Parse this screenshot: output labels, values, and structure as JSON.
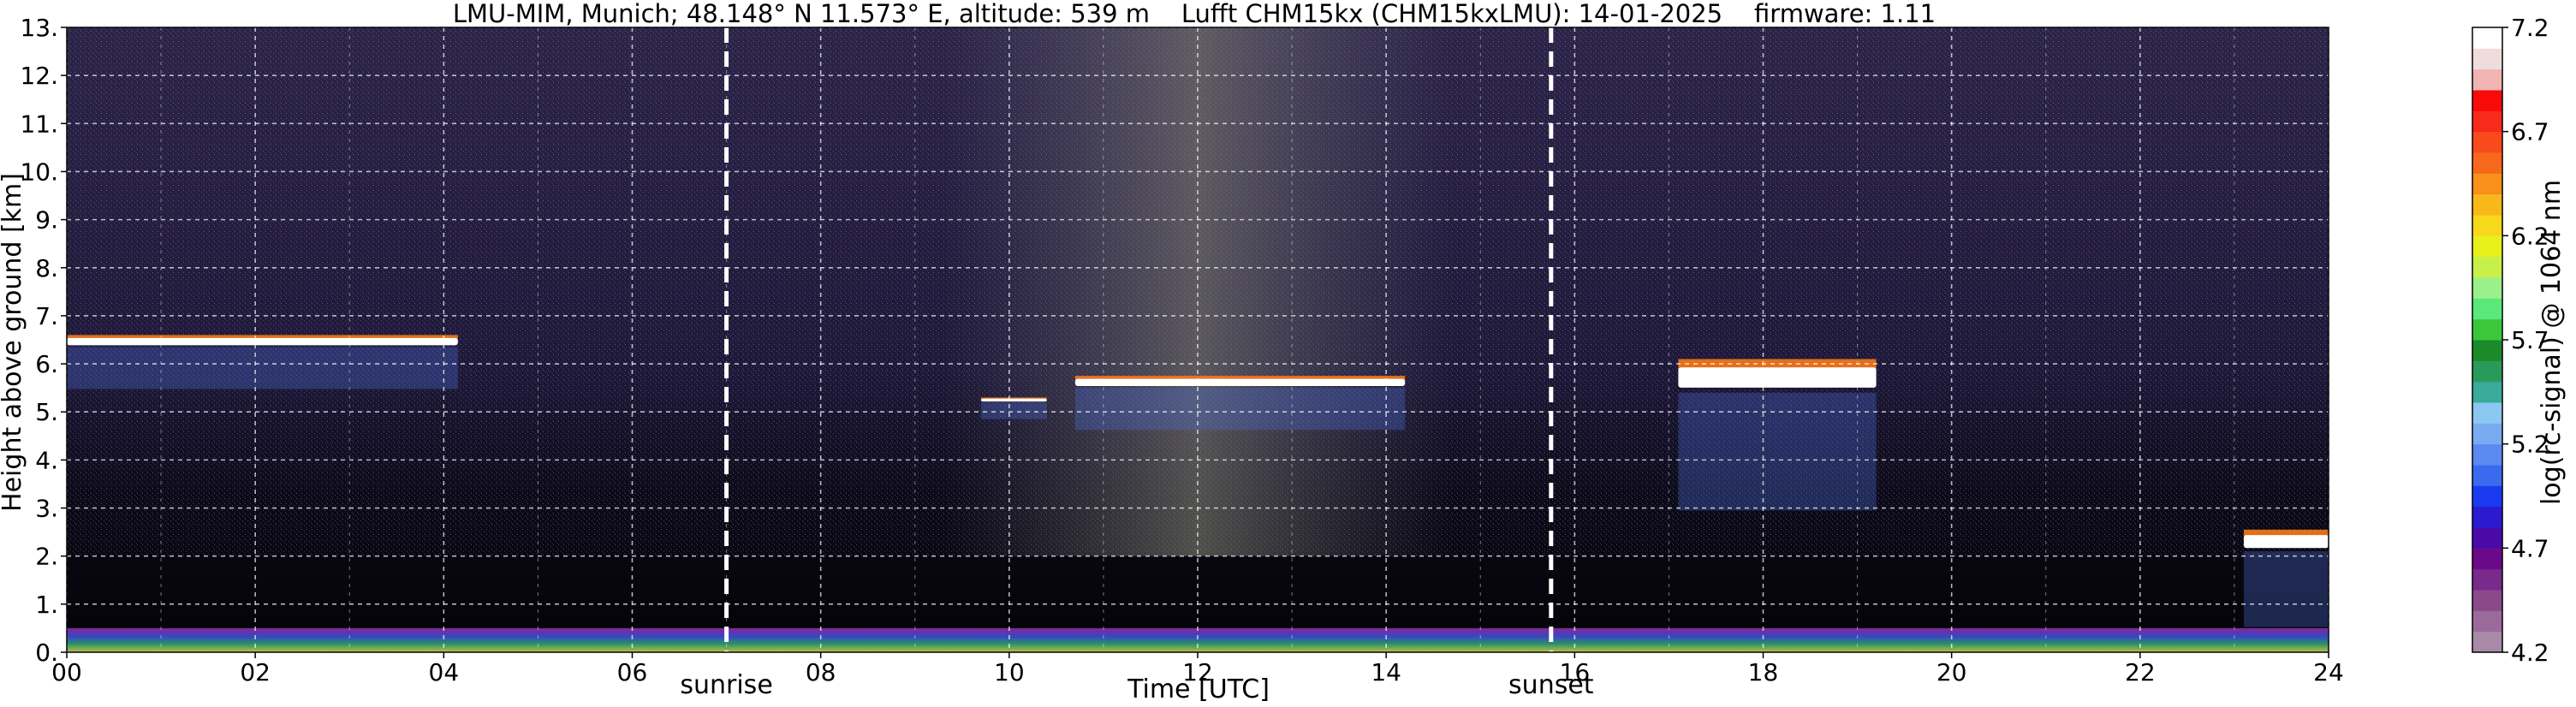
{
  "chart_data": {
    "type": "heatmap",
    "title": "LMU-MIM, Munich; 48.148° N 11.573° E, altitude: 539 m    Lufft CHM15kx (CHM15kxLMU): 14-01-2025    firmware: 1.11",
    "xlabel": "Time [UTC]",
    "ylabel": "Height above ground [km]",
    "xlim": [
      0,
      24
    ],
    "ylim": [
      0,
      13
    ],
    "x_ticks": [
      "00",
      "02",
      "04",
      "06",
      "08",
      "10",
      "12",
      "14",
      "16",
      "18",
      "20",
      "22",
      "24"
    ],
    "y_ticks": [
      "0.",
      "1.",
      "2.",
      "3.",
      "4.",
      "5.",
      "6.",
      "7.",
      "8.",
      "9.",
      "10.",
      "11.",
      "12.",
      "13."
    ],
    "grid": true,
    "events": [
      {
        "name": "sunrise",
        "time": 7.0
      },
      {
        "name": "sunset",
        "time": 15.75
      }
    ],
    "colorbar": {
      "label": "log(rc-signal) @ 1064 nm",
      "range": [
        4.2,
        7.2
      ],
      "ticks": [
        "4.2",
        "4.7",
        "5.2",
        "5.7",
        "6.2",
        "6.7",
        "7.2"
      ],
      "colors": [
        "#a88aa8",
        "#9a6a9a",
        "#8a4a8a",
        "#7a2a8a",
        "#6a0a8a",
        "#4a0aaa",
        "#2a1ad0",
        "#1a3af0",
        "#3a6af0",
        "#5a8af0",
        "#7aaaf0",
        "#8ac8f0",
        "#3aaa9a",
        "#2a9a5a",
        "#1a8a2a",
        "#3ac83a",
        "#5ae87a",
        "#9af08a",
        "#c8f04a",
        "#e8f01a",
        "#f8d81a",
        "#f8b81a",
        "#f8901a",
        "#f8681a",
        "#f84a1a",
        "#f82a1a",
        "#f80a0a",
        "#f0b4b4",
        "#f0dcdc",
        "#ffffff"
      ]
    },
    "features": [
      {
        "type": "cloud",
        "t0": 0.0,
        "t1": 4.15,
        "base_km": 6.35,
        "top_km": 6.6
      },
      {
        "type": "cloud",
        "t0": 9.7,
        "t1": 10.4,
        "base_km": 5.2,
        "top_km": 5.3
      },
      {
        "type": "cloud",
        "t0": 10.7,
        "t1": 14.2,
        "base_km": 5.5,
        "top_km": 5.75
      },
      {
        "type": "cloud",
        "t0": 17.1,
        "t1": 19.2,
        "base_km": 5.4,
        "top_km": 6.1
      },
      {
        "type": "cloud",
        "t0": 23.1,
        "t1": 24.0,
        "base_km": 2.1,
        "top_km": 2.55
      },
      {
        "type": "aerosol_layer",
        "t0": 0.0,
        "t1": 24.0,
        "base_km": 0.0,
        "top_km": 0.5
      }
    ]
  }
}
